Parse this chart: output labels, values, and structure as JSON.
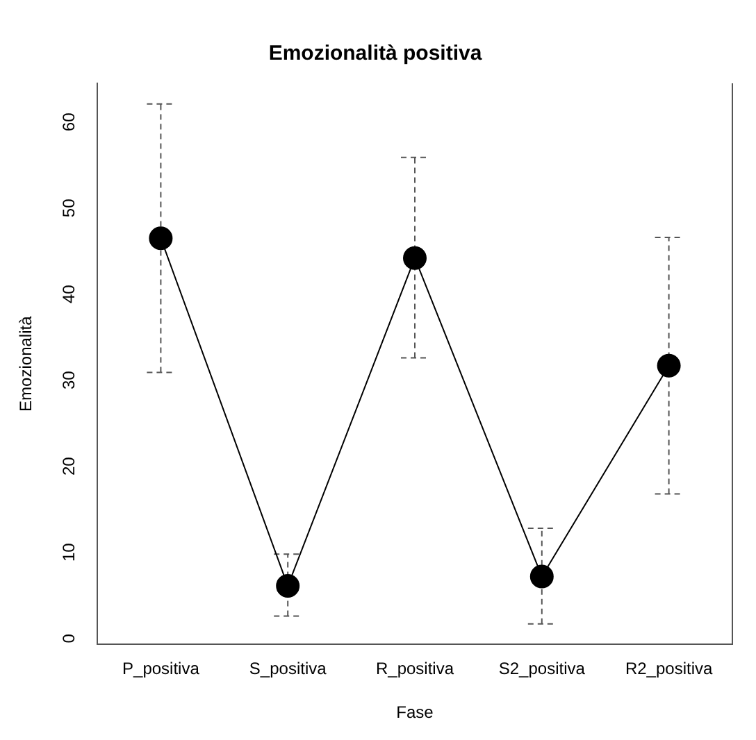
{
  "chart_data": {
    "type": "line",
    "title": "Emozionalità positiva",
    "xlabel": "Fase",
    "ylabel": "Emozionalità",
    "categories": [
      "P_positiva",
      "S_positiva",
      "R_positiva",
      "S2_positiva",
      "R2_positiva"
    ],
    "series": [
      {
        "color": "#000000",
        "values": [
          46.5,
          6.1,
          44.2,
          7.2,
          31.7
        ],
        "errors": [
          [
            30.9,
            62.1
          ],
          [
            2.6,
            9.8
          ],
          [
            32.6,
            55.9
          ],
          [
            1.7,
            12.8
          ],
          [
            16.8,
            46.6
          ]
        ]
      }
    ],
    "ylim": [
      -0.7,
      64.5
    ],
    "yticks": [
      0,
      10,
      20,
      30,
      40,
      50,
      60
    ],
    "grid": false,
    "legend": false,
    "marker": "circle",
    "line_style": "solid"
  }
}
